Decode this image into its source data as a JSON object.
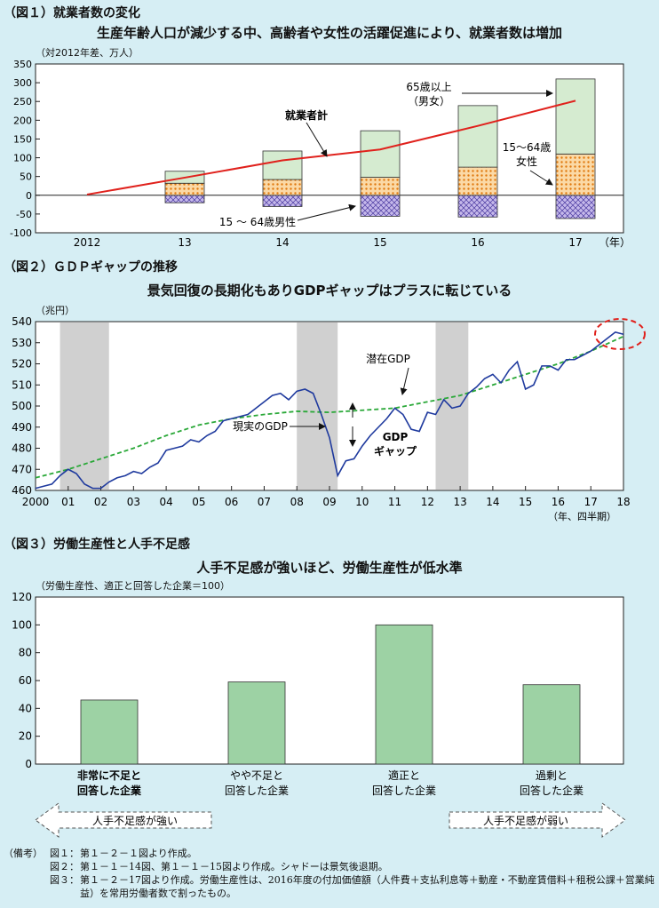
{
  "fig1": {
    "header": "（図１）就業者数の変化",
    "subtitle": "生産年齢人口が減少する中、高齢者や女性の活躍促進により、就業者数は増加",
    "unit": "（対2012年差、万人）",
    "chart_data": {
      "type": "bar",
      "stacked": true,
      "categories": [
        "2012",
        "13",
        "14",
        "15",
        "16",
        "17"
      ],
      "x_unit": "（年）",
      "ylim": [
        -100,
        350
      ],
      "yticks": [
        -100,
        -50,
        0,
        50,
        100,
        150,
        200,
        250,
        300,
        350
      ],
      "series": [
        {
          "name": "15～64歳男性",
          "values": [
            0,
            -20,
            -30,
            -56,
            -58,
            -62
          ]
        },
        {
          "name": "15～64歳女性",
          "values": [
            0,
            32,
            42,
            48,
            75,
            110
          ]
        },
        {
          "name": "65歳以上（男女）",
          "values": [
            0,
            32,
            76,
            124,
            164,
            200
          ]
        },
        {
          "name": "就業者計",
          "type": "line",
          "values": [
            2,
            47,
            93,
            122,
            185,
            252
          ]
        }
      ],
      "labels": {
        "total": "就業者計",
        "elderly_1": "65歳以上",
        "elderly_2": "（男女）",
        "female_1": "15～64歳",
        "female_2": "女性",
        "male": "15 ～ 64歳男性"
      },
      "colors": {
        "male": "#b6a8e0",
        "female": "#f5b05a",
        "elderly": "#d5ebd0",
        "total": "#e0211c"
      }
    }
  },
  "fig2": {
    "header": "（図２）ＧＤＰギャップの推移",
    "subtitle": "景気回復の長期化もありGDPギャップはプラスに転じている",
    "unit": "（兆円）",
    "chart_data": {
      "type": "line",
      "x_labels": [
        "2000",
        "01",
        "02",
        "03",
        "04",
        "05",
        "06",
        "07",
        "08",
        "09",
        "10",
        "11",
        "12",
        "13",
        "14",
        "15",
        "16",
        "17",
        "18"
      ],
      "x_unit": "（年、四半期）",
      "ylim": [
        460,
        540
      ],
      "yticks": [
        460,
        470,
        480,
        490,
        500,
        510,
        520,
        530,
        540
      ],
      "recessions": [
        [
          2000.75,
          2002.25
        ],
        [
          2008.0,
          2009.25
        ],
        [
          2012.25,
          2013.25
        ]
      ],
      "series": [
        {
          "name": "現実のGDP",
          "values": [
            [
              2000.0,
              461
            ],
            [
              2000.25,
              462
            ],
            [
              2000.5,
              463
            ],
            [
              2000.75,
              467
            ],
            [
              2001.0,
              470
            ],
            [
              2001.25,
              468
            ],
            [
              2001.5,
              463
            ],
            [
              2001.75,
              461
            ],
            [
              2002.0,
              461
            ],
            [
              2002.25,
              464
            ],
            [
              2002.5,
              466
            ],
            [
              2002.75,
              467
            ],
            [
              2003.0,
              469
            ],
            [
              2003.25,
              468
            ],
            [
              2003.5,
              471
            ],
            [
              2003.75,
              473
            ],
            [
              2004.0,
              479
            ],
            [
              2004.25,
              480
            ],
            [
              2004.5,
              481
            ],
            [
              2004.75,
              484
            ],
            [
              2005.0,
              483
            ],
            [
              2005.25,
              486
            ],
            [
              2005.5,
              488
            ],
            [
              2005.75,
              493
            ],
            [
              2006.0,
              494
            ],
            [
              2006.25,
              495
            ],
            [
              2006.5,
              496
            ],
            [
              2006.75,
              499
            ],
            [
              2007.0,
              502
            ],
            [
              2007.25,
              505
            ],
            [
              2007.5,
              506
            ],
            [
              2007.75,
              503
            ],
            [
              2008.0,
              507
            ],
            [
              2008.25,
              508
            ],
            [
              2008.5,
              506
            ],
            [
              2008.75,
              496
            ],
            [
              2009.0,
              485
            ],
            [
              2009.25,
              467
            ],
            [
              2009.5,
              474
            ],
            [
              2009.75,
              475
            ],
            [
              2010.0,
              481
            ],
            [
              2010.25,
              486
            ],
            [
              2010.5,
              490
            ],
            [
              2010.75,
              494
            ],
            [
              2011.0,
              499
            ],
            [
              2011.25,
              496
            ],
            [
              2011.5,
              489
            ],
            [
              2011.75,
              488
            ],
            [
              2012.0,
              497
            ],
            [
              2012.25,
              496
            ],
            [
              2012.5,
              503
            ],
            [
              2012.75,
              499
            ],
            [
              2013.0,
              500
            ],
            [
              2013.25,
              506
            ],
            [
              2013.5,
              509
            ],
            [
              2013.75,
              513
            ],
            [
              2014.0,
              515
            ],
            [
              2014.25,
              511
            ],
            [
              2014.5,
              517
            ],
            [
              2014.75,
              521
            ],
            [
              2015.0,
              508
            ],
            [
              2015.25,
              510
            ],
            [
              2015.5,
              519
            ],
            [
              2015.75,
              519
            ],
            [
              2016.0,
              517
            ],
            [
              2016.25,
              522
            ],
            [
              2016.5,
              522
            ],
            [
              2016.75,
              524
            ],
            [
              2017.0,
              526
            ],
            [
              2017.25,
              529
            ],
            [
              2017.5,
              532
            ],
            [
              2017.75,
              535
            ],
            [
              2018.0,
              534
            ]
          ]
        },
        {
          "name": "潜在GDP",
          "style": "dashed",
          "values": [
            [
              2000.0,
              466
            ],
            [
              2001.0,
              470
            ],
            [
              2002.0,
              475
            ],
            [
              2003.0,
              480
            ],
            [
              2004.0,
              486
            ],
            [
              2005.0,
              491
            ],
            [
              2006.0,
              494
            ],
            [
              2007.0,
              496
            ],
            [
              2008.0,
              497.5
            ],
            [
              2009.0,
              497
            ],
            [
              2010.0,
              498
            ],
            [
              2011.0,
              499
            ],
            [
              2012.0,
              502
            ],
            [
              2013.0,
              505
            ],
            [
              2014.0,
              510
            ],
            [
              2015.0,
              515
            ],
            [
              2016.0,
              520
            ],
            [
              2017.0,
              526
            ],
            [
              2018.0,
              533
            ]
          ]
        }
      ],
      "labels": {
        "potential": "潜在GDP",
        "actual": "現実のGDP",
        "gap_1": "GDP",
        "gap_2": "ギャップ"
      },
      "colors": {
        "actual": "#1f3a9e",
        "potential": "#2aa838",
        "recession": "#d0d0d0",
        "highlight": "#e0211c"
      }
    }
  },
  "fig3": {
    "header": "（図３）労働生産性と人手不足感",
    "subtitle": "人手不足感が強いほど、労働生産性が低水準",
    "unit": "（労働生産性、適正と回答した企業＝100）",
    "chart_data": {
      "type": "bar",
      "categories": [
        [
          "非常に不足と",
          "回答した企業"
        ],
        [
          "やや不足と",
          "回答した企業"
        ],
        [
          "適正と",
          "回答した企業"
        ],
        [
          "過剰と",
          "回答した企業"
        ]
      ],
      "values": [
        46,
        59,
        100,
        57
      ],
      "ylim": [
        0,
        120
      ],
      "yticks": [
        0,
        20,
        40,
        60,
        80,
        100,
        120
      ],
      "color": "#9dd2a4"
    },
    "arrow_left": "人手不足感が強い",
    "arrow_right": "人手不足感が弱い"
  },
  "notes": {
    "label": "（備考）",
    "lines": [
      {
        "lbl": "図１：",
        "txt": "第１－２－１図より作成。"
      },
      {
        "lbl": "図２：",
        "txt": "第１－１－14図、第１－１－15図より作成。シャドーは景気後退期。"
      },
      {
        "lbl": "図３：",
        "txt": "第１－２－17図より作成。労働生産性は、2016年度の付加価値額（人件費＋支払利息等＋動産・不動産賃借料＋租税公課＋営業純益）を常用労働者数で割ったもの。"
      }
    ]
  }
}
